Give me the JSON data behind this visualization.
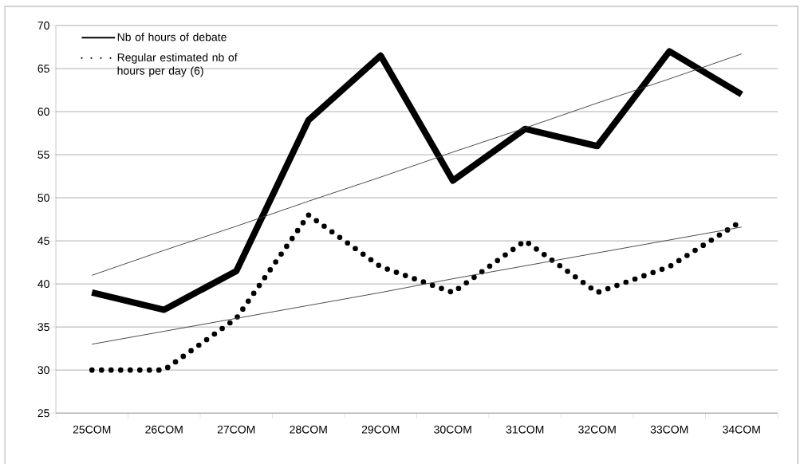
{
  "chart_data": {
    "type": "line",
    "categories": [
      "25COM",
      "26COM",
      "27COM",
      "28COM",
      "29COM",
      "30COM",
      "31COM",
      "32COM",
      "33COM",
      "34COM"
    ],
    "series": [
      {
        "name": "Nb of hours of debate",
        "color": "#000000",
        "line_style": "solid",
        "values": [
          39,
          37,
          41.5,
          59,
          66.5,
          52,
          58,
          56,
          67,
          62
        ]
      },
      {
        "name": "Regular estimated nb of hours per day (6)",
        "color": "#000000",
        "line_style": "dotted",
        "values": [
          30,
          30,
          36,
          48,
          42,
          39,
          45,
          39,
          42,
          47.3
        ]
      },
      {
        "color": "#404040",
        "line_style": "solid",
        "values": [
          41,
          43.9,
          46.7,
          49.6,
          52.4,
          55.3,
          58.1,
          61.0,
          63.8,
          66.7
        ]
      },
      {
        "color": "#404040",
        "line_style": "solid",
        "values": [
          33.0,
          34.5,
          36.0,
          37.5,
          39.0,
          40.6,
          42.1,
          43.6,
          45.1,
          46.6
        ]
      }
    ],
    "ylim": [
      25,
      70
    ],
    "yticks": [
      25,
      30,
      35,
      40,
      45,
      50,
      55,
      60,
      65,
      70
    ],
    "grid": "y",
    "legend": "top left",
    "marker": "none"
  }
}
